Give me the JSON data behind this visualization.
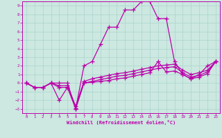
{
  "xlabel": "Windchill (Refroidissement éolien,°C)",
  "xlim": [
    -0.5,
    23.5
  ],
  "ylim": [
    -3.5,
    9.5
  ],
  "xticks": [
    0,
    1,
    2,
    3,
    4,
    5,
    6,
    7,
    8,
    9,
    10,
    11,
    12,
    13,
    14,
    15,
    16,
    17,
    18,
    19,
    20,
    21,
    22,
    23
  ],
  "yticks": [
    -3,
    -2,
    -1,
    0,
    1,
    2,
    3,
    4,
    5,
    6,
    7,
    8,
    9
  ],
  "background_color": "#cce8e0",
  "grid_color": "#aad4cc",
  "line_color": "#bb00aa",
  "line_width": 0.9,
  "marker": "+",
  "marker_size": 4,
  "marker_edge_width": 0.9,
  "main_line": [
    0,
    -0.5,
    -0.5,
    0.0,
    0.0,
    0.0,
    -3.0,
    2.0,
    2.5,
    4.5,
    6.5,
    6.5,
    8.5,
    8.5,
    9.5,
    9.5,
    7.5,
    7.5,
    2.5,
    1.0,
    0.5,
    1.0,
    2.0,
    2.5
  ],
  "wc1": [
    0,
    -0.5,
    -0.5,
    0.0,
    -2.0,
    -0.5,
    -3.0,
    0.0,
    0.1,
    0.2,
    0.3,
    0.5,
    0.6,
    0.8,
    1.0,
    1.2,
    2.5,
    1.3,
    1.4,
    1.0,
    0.5,
    0.7,
    1.1,
    2.5
  ],
  "wc2": [
    0,
    -0.5,
    -0.5,
    0.0,
    -0.5,
    -0.5,
    -2.9,
    0.0,
    0.2,
    0.4,
    0.6,
    0.8,
    0.9,
    1.1,
    1.3,
    1.5,
    1.7,
    1.8,
    1.9,
    1.2,
    0.7,
    0.9,
    1.3,
    2.5
  ],
  "wc3": [
    0,
    -0.5,
    -0.5,
    0.0,
    -0.3,
    -0.3,
    -2.7,
    0.2,
    0.5,
    0.7,
    0.9,
    1.1,
    1.2,
    1.4,
    1.6,
    1.8,
    2.0,
    2.1,
    2.2,
    1.5,
    1.0,
    1.2,
    1.5,
    2.5
  ]
}
